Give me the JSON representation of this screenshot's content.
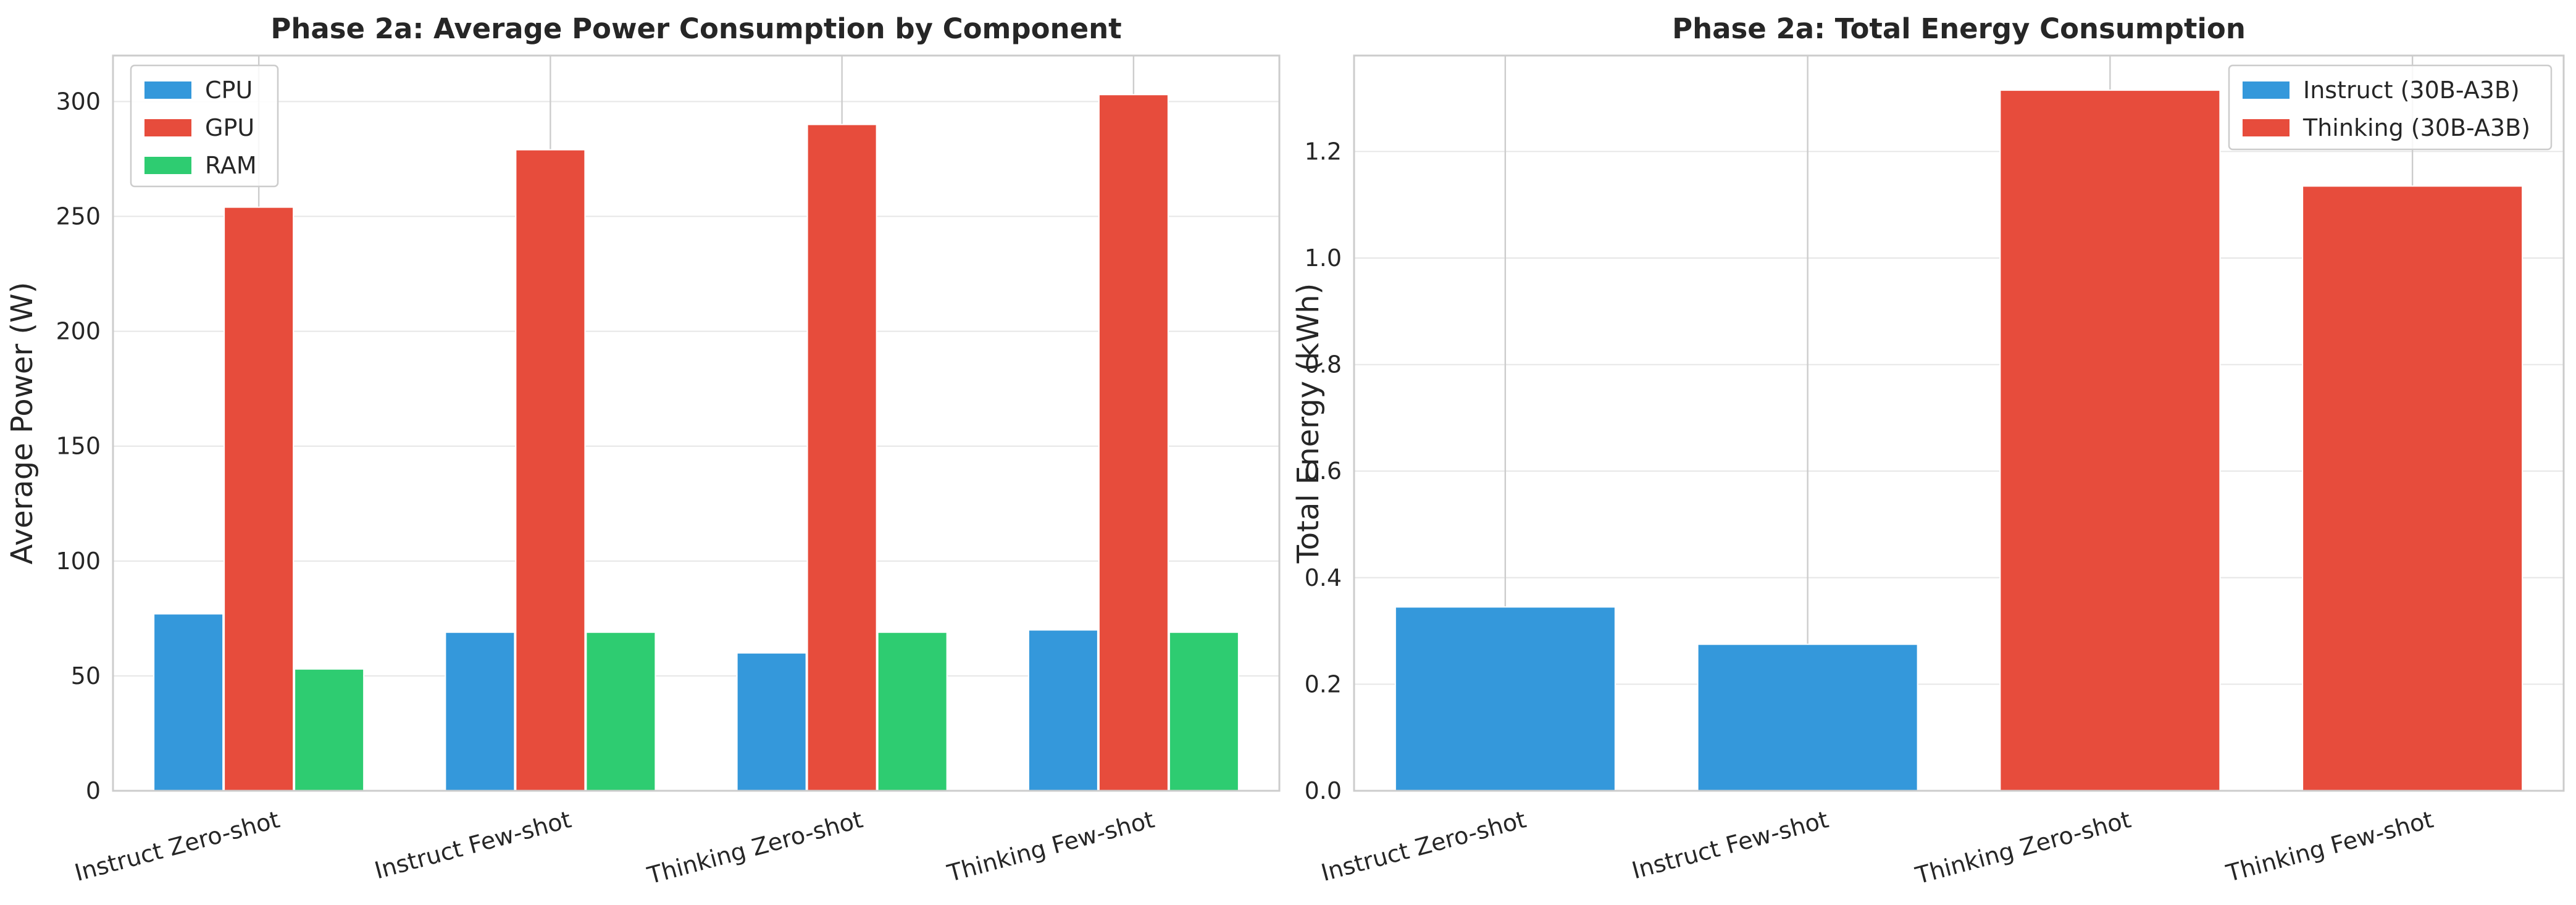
{
  "chart_data": [
    {
      "type": "bar",
      "title": "Phase 2a: Average Power Consumption by Component",
      "xlabel": "",
      "ylabel": "Average Power (W)",
      "ylim": [
        0,
        320
      ],
      "yticks": [
        0,
        50,
        100,
        150,
        200,
        250,
        300
      ],
      "grid": true,
      "legend_position": "top-left",
      "categories": [
        "Instruct Zero-shot",
        "Instruct Few-shot",
        "Thinking Zero-shot",
        "Thinking Few-shot"
      ],
      "series": [
        {
          "name": "CPU",
          "color": "#3498db",
          "values": [
            77,
            69,
            60,
            70
          ]
        },
        {
          "name": "GPU",
          "color": "#e74c3c",
          "values": [
            254,
            279,
            290,
            303
          ]
        },
        {
          "name": "RAM",
          "color": "#2ecc71",
          "values": [
            53,
            69,
            69,
            69
          ]
        }
      ]
    },
    {
      "type": "bar",
      "title": "Phase 2a: Total Energy Consumption",
      "xlabel": "",
      "ylabel": "Total Energy (kWh)",
      "ylim": [
        0,
        1.38
      ],
      "yticks": [
        0.0,
        0.2,
        0.4,
        0.6,
        0.8,
        1.0,
        1.2
      ],
      "ytick_labels": [
        "0.0",
        "0.2",
        "0.4",
        "0.6",
        "0.8",
        "1.0",
        "1.2"
      ],
      "grid": true,
      "legend_position": "top-right",
      "categories": [
        "Instruct Zero-shot",
        "Instruct Few-shot",
        "Thinking Zero-shot",
        "Thinking Few-shot"
      ],
      "values": [
        0.345,
        0.275,
        1.315,
        1.135
      ],
      "bar_groups": [
        "Instruct (30B-A3B)",
        "Instruct (30B-A3B)",
        "Thinking (30B-A3B)",
        "Thinking (30B-A3B)"
      ],
      "legend": [
        {
          "name": "Instruct (30B-A3B)",
          "color": "#3498db"
        },
        {
          "name": "Thinking (30B-A3B)",
          "color": "#e74c3c"
        }
      ]
    }
  ]
}
